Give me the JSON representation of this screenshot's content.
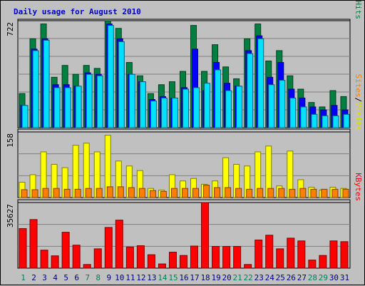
{
  "chart_data": {
    "type": "bar",
    "title": "Daily usage for August 2010",
    "categories": [
      "1",
      "2",
      "3",
      "4",
      "5",
      "6",
      "7",
      "8",
      "9",
      "10",
      "11",
      "12",
      "13",
      "14",
      "15",
      "16",
      "17",
      "18",
      "19",
      "20",
      "21",
      "22",
      "23",
      "24",
      "25",
      "26",
      "27",
      "28",
      "29",
      "30",
      "31"
    ],
    "weekend_days": [
      "1",
      "7",
      "8",
      "14",
      "15",
      "21",
      "22",
      "28",
      "29"
    ],
    "panels": [
      {
        "id": "top",
        "ymax_label": "722",
        "ymax": 722,
        "legend": [
          "Pages",
          "/",
          "Files",
          "/",
          "Hits"
        ],
        "series": [
          {
            "name": "Hits",
            "color": "#008040",
            "values": [
              230,
              600,
              700,
              340,
              420,
              360,
              420,
              400,
              722,
              670,
              440,
              350,
              230,
              290,
              310,
              380,
              690,
              380,
              560,
              410,
              330,
              600,
              700,
              450,
              520,
              350,
              260,
              170,
              140,
              250,
              210
            ]
          },
          {
            "name": "Files",
            "color": "#0000ff",
            "values": [
              150,
              530,
              600,
              290,
              290,
              280,
              370,
              360,
              700,
              600,
              360,
              310,
              190,
              210,
              200,
              270,
              530,
              250,
              440,
              300,
              280,
              520,
              620,
              340,
              440,
              260,
              200,
              140,
              120,
              150,
              120
            ]
          },
          {
            "name": "Pages",
            "color": "#00e0ff",
            "values": [
              150,
              520,
              590,
              270,
              270,
              280,
              360,
              350,
              690,
              580,
              360,
              310,
              180,
              200,
              200,
              260,
              270,
              300,
              390,
              250,
              280,
              500,
              600,
              290,
              320,
              200,
              140,
              90,
              80,
              80,
              90
            ]
          }
        ]
      },
      {
        "id": "mid",
        "ymax_label": "158",
        "ymax": 158,
        "legend": [
          "Sites",
          "/",
          "Visits"
        ],
        "series": [
          {
            "name": "Visits",
            "color": "#ffff00",
            "values": [
              37,
              55,
              110,
              80,
              72,
              126,
              131,
              110,
              150,
              88,
              76,
              65,
              22,
              18,
              55,
              40,
              46,
              32,
              40,
              96,
              80,
              76,
              110,
              124,
              28,
              112,
              43,
              25,
              18,
              25,
              22
            ]
          },
          {
            "name": "Sites",
            "color": "#ff8000",
            "values": [
              19,
              19,
              22,
              22,
              20,
              20,
              22,
              22,
              26,
              26,
              24,
              22,
              17,
              15,
              22,
              22,
              22,
              30,
              24,
              24,
              22,
              20,
              22,
              22,
              22,
              20,
              22,
              20,
              20,
              20,
              20
            ]
          }
        ]
      },
      {
        "id": "bot",
        "ymax_label": "35627",
        "ymax": 35627,
        "legend": [
          "KBytes"
        ],
        "series": [
          {
            "name": "KBytes",
            "color": "#ff0000",
            "values": [
              21500,
              26400,
              9800,
              6700,
              19500,
              12500,
              2000,
              10500,
              22100,
              26100,
              11500,
              12200,
              7300,
              2300,
              8700,
              6900,
              12000,
              35627,
              11800,
              11800,
              11800,
              2000,
              15300,
              17900,
              10500,
              16300,
              14800,
              4400,
              6900,
              14800,
              14400
            ]
          }
        ]
      }
    ]
  },
  "colors": {
    "weekend_day": "#00805c",
    "weekday_day": "#000080",
    "background": "#c0c0c0",
    "plot_bg": "#c0c0c0"
  }
}
